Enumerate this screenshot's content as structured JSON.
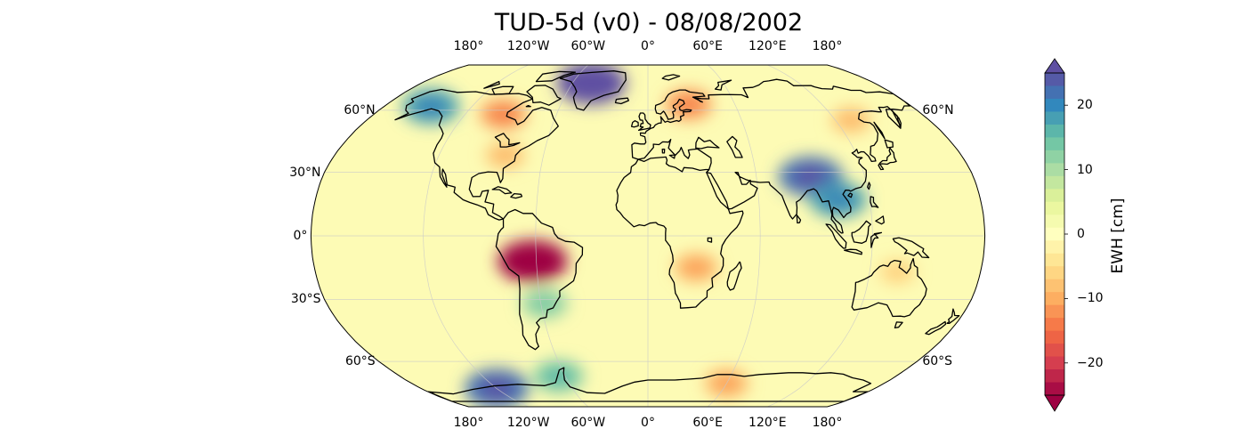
{
  "title": "TUD-5d (v0) - 08/08/2002",
  "map": {
    "projection": "Robinson",
    "lon_labels": [
      "180°",
      "120°W",
      "60°W",
      "0°",
      "60°E",
      "120°E",
      "180°"
    ],
    "lon_values": [
      -180,
      -120,
      -60,
      0,
      60,
      120,
      180
    ],
    "lat_labels_left": [
      "60°N",
      "30°N",
      "0°",
      "30°S",
      "60°S"
    ],
    "lat_labels_right": [
      "60°N",
      "60°S"
    ],
    "lat_values": [
      60,
      30,
      0,
      -30,
      -60
    ],
    "lat_values_right": [
      60,
      -60
    ],
    "gridlines": true,
    "background_color": "#fdfbb5",
    "anomalies": [
      {
        "region": "Greenland",
        "lon": -45,
        "lat": 75,
        "value": 25
      },
      {
        "region": "Alaska",
        "lon": -148,
        "lat": 62,
        "value": 18
      },
      {
        "region": "Canada",
        "lon": -95,
        "lat": 58,
        "value": -12
      },
      {
        "region": "Eastern United States",
        "lon": -82,
        "lat": 38,
        "value": -8
      },
      {
        "region": "Amazon",
        "lon": -62,
        "lat": -12,
        "value": -25
      },
      {
        "region": "Paraná basin",
        "lon": -58,
        "lat": -32,
        "value": 12
      },
      {
        "region": "Southern Africa",
        "lon": 26,
        "lat": -15,
        "value": -10
      },
      {
        "region": "Scandinavia",
        "lon": 28,
        "lat": 63,
        "value": -12
      },
      {
        "region": "Himalaya",
        "lon": 90,
        "lat": 28,
        "value": 22
      },
      {
        "region": "Mekong",
        "lon": 103,
        "lat": 17,
        "value": 18
      },
      {
        "region": "Northeast Asia",
        "lon": 130,
        "lat": 55,
        "value": -8
      },
      {
        "region": "Northern Australia",
        "lon": 135,
        "lat": -17,
        "value": -6
      },
      {
        "region": "West Antarctica",
        "lon": -120,
        "lat": -75,
        "value": 22
      },
      {
        "region": "Antarctic Peninsula",
        "lon": -65,
        "lat": -68,
        "value": 14
      },
      {
        "region": "East Antarctica",
        "lon": 60,
        "lat": -72,
        "value": -10
      }
    ]
  },
  "colorbar": {
    "label": "EWH [cm]",
    "ticks": [
      "20",
      "10",
      "0",
      "−10",
      "−20"
    ],
    "tick_values": [
      20,
      10,
      0,
      -10,
      -20
    ],
    "range": [
      -25,
      25
    ],
    "colormap": "Spectral",
    "colors": [
      "#9e0142",
      "#d53e4f",
      "#f46d43",
      "#fdae61",
      "#fee08b",
      "#ffffbf",
      "#e6f598",
      "#abdda4",
      "#66c2a5",
      "#3288bd",
      "#5e4fa2"
    ]
  }
}
